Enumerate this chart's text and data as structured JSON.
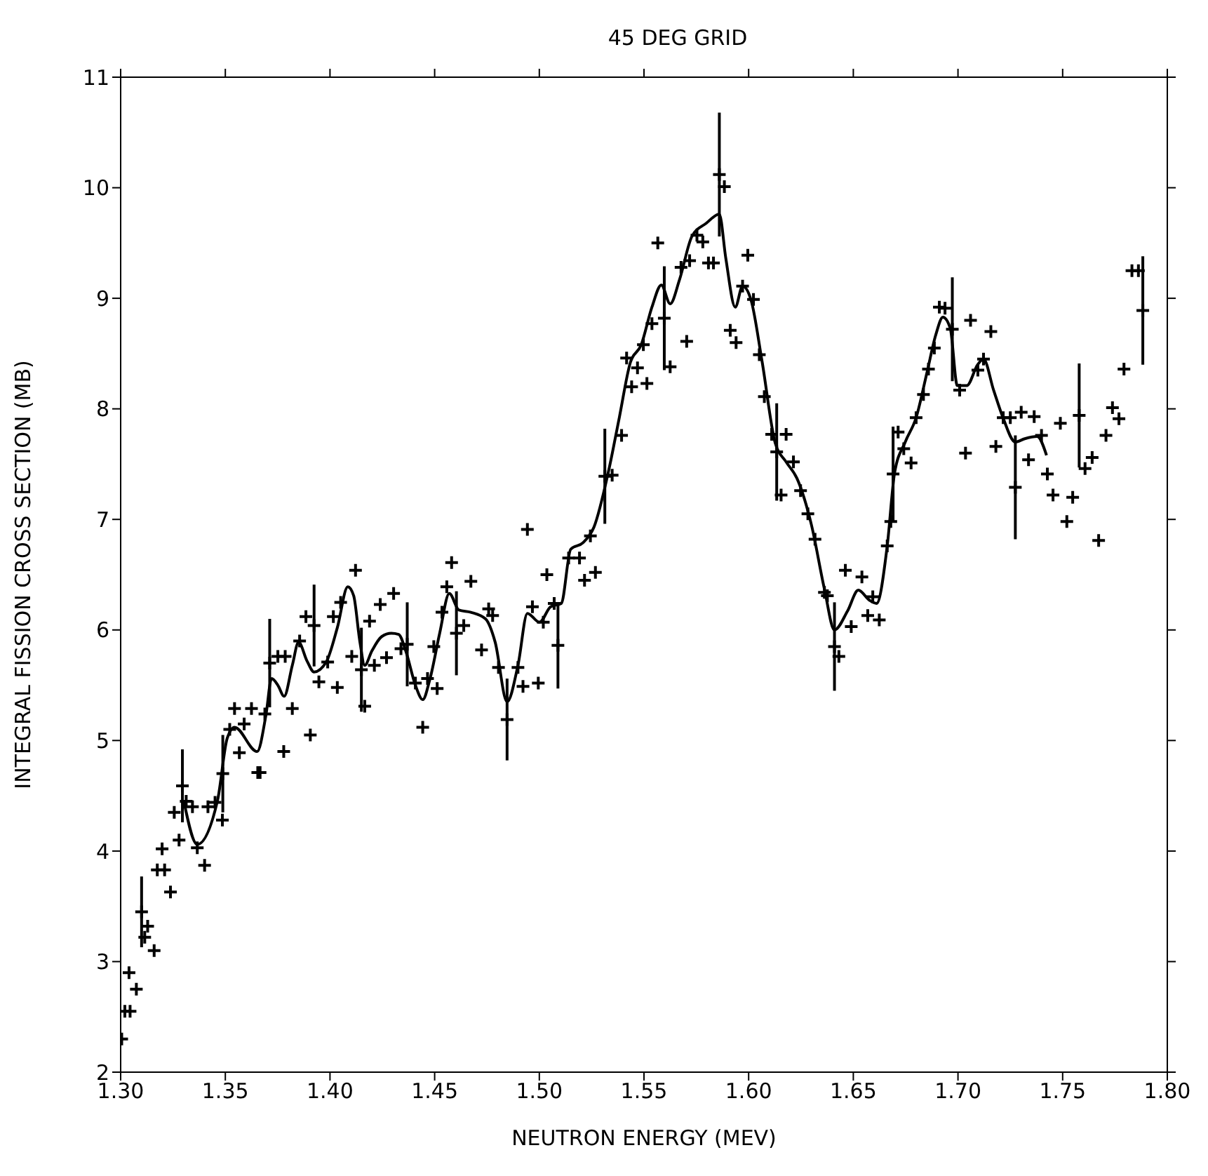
{
  "chart_data": {
    "type": "scatter",
    "title": "45 DEG GRID",
    "xlabel": "NEUTRON ENERGY (MEV)",
    "ylabel": "INTEGRAL FISSION CROSS SECTION (MB)",
    "xlim": [
      1.3,
      1.8
    ],
    "xticks": [
      {
        "value": 1.3,
        "label": "1.30"
      },
      {
        "value": 1.35,
        "label": "1.35"
      },
      {
        "value": 1.4,
        "label": "1.40"
      },
      {
        "value": 1.45,
        "label": "1.45"
      },
      {
        "value": 1.5,
        "label": "1.50"
      },
      {
        "value": 1.55,
        "label": "1.55"
      },
      {
        "value": 1.6,
        "label": "1.60"
      },
      {
        "value": 1.65,
        "label": "1.65"
      },
      {
        "value": 1.7,
        "label": "1.70"
      },
      {
        "value": 1.75,
        "label": "1.75"
      },
      {
        "value": 1.8,
        "label": "1.80"
      }
    ],
    "ylim": [
      2,
      11
    ],
    "yticks": [
      2,
      3,
      4,
      5,
      6,
      7,
      8,
      9,
      10,
      11
    ],
    "grid": false,
    "legend": false,
    "series": [
      {
        "type": "scatter",
        "marker": "cross",
        "color": "#000000",
        "x": [
          1.3005,
          1.302,
          1.304,
          1.3045,
          1.3075,
          1.31,
          1.3115,
          1.3129,
          1.316,
          1.3175,
          1.3198,
          1.321,
          1.3238,
          1.3256,
          1.3279,
          1.3295,
          1.3313,
          1.3343,
          1.3366,
          1.3401,
          1.3417,
          1.3451,
          1.3486,
          1.3488,
          1.3521,
          1.3544,
          1.3567,
          1.359,
          1.3625,
          1.3655,
          1.3666,
          1.3689,
          1.3712,
          1.3751,
          1.3779,
          1.3786,
          1.382,
          1.3855,
          1.3885,
          1.3906,
          1.3924,
          1.3947,
          1.3989,
          1.4016,
          1.4035,
          1.4051,
          1.4104,
          1.4122,
          1.415,
          1.4166,
          1.4189,
          1.4212,
          1.424,
          1.427,
          1.4304,
          1.4339,
          1.4369,
          1.4408,
          1.4443,
          1.4466,
          1.4496,
          1.4512,
          1.4535,
          1.4558,
          1.4581,
          1.4604,
          1.4639,
          1.4673,
          1.4724,
          1.4758,
          1.4777,
          1.4805,
          1.4846,
          1.4898,
          1.4922,
          1.4943,
          1.4967,
          1.4995,
          1.5019,
          1.5036,
          1.5071,
          1.5089,
          1.514,
          1.5192,
          1.5216,
          1.5244,
          1.5268,
          1.5313,
          1.5348,
          1.5393,
          1.5417,
          1.5441,
          1.5469,
          1.5497,
          1.5514,
          1.5538,
          1.5566,
          1.5597,
          1.5625,
          1.5677,
          1.5704,
          1.5718,
          1.5753,
          1.5781,
          1.5808,
          1.5832,
          1.586,
          1.5884,
          1.5912,
          1.594,
          1.5971,
          1.5996,
          1.6023,
          1.6051,
          1.6075,
          1.611,
          1.6134,
          1.6155,
          1.6179,
          1.6214,
          1.6248,
          1.6283,
          1.6317,
          1.6362,
          1.6376,
          1.641,
          1.6431,
          1.6462,
          1.649,
          1.6541,
          1.6569,
          1.6593,
          1.6624,
          1.6662,
          1.6679,
          1.669,
          1.6714,
          1.6741,
          1.6776,
          1.68,
          1.6835,
          1.6859,
          1.6887,
          1.6911,
          1.6938,
          1.6973,
          1.7008,
          1.7036,
          1.706,
          1.7095,
          1.7122,
          1.7157,
          1.7181,
          1.7216,
          1.725,
          1.7274,
          1.7302,
          1.7337,
          1.7364,
          1.7399,
          1.7427,
          1.7454,
          1.7489,
          1.752,
          1.7548,
          1.7579,
          1.7607,
          1.7641,
          1.7672,
          1.7707,
          1.7738,
          1.7769,
          1.7793,
          1.7831,
          1.7862,
          1.7883
        ],
        "values": [
          2.3,
          2.55,
          2.9,
          2.55,
          2.75,
          3.45,
          3.22,
          3.32,
          3.1,
          3.83,
          4.02,
          3.83,
          3.63,
          4.35,
          4.1,
          4.59,
          4.45,
          4.4,
          4.03,
          3.87,
          4.4,
          4.44,
          4.28,
          4.7,
          5.1,
          5.29,
          4.89,
          5.15,
          5.29,
          4.71,
          4.71,
          5.24,
          5.7,
          5.76,
          4.9,
          5.76,
          5.29,
          5.9,
          6.12,
          5.05,
          6.04,
          5.53,
          5.71,
          6.12,
          5.48,
          6.25,
          5.76,
          6.54,
          5.64,
          5.31,
          6.08,
          5.68,
          6.23,
          5.75,
          6.33,
          5.83,
          5.87,
          5.52,
          5.12,
          5.56,
          5.85,
          5.47,
          6.16,
          6.39,
          6.61,
          5.97,
          6.04,
          6.44,
          5.82,
          6.19,
          6.13,
          5.66,
          5.19,
          5.66,
          5.49,
          6.91,
          6.21,
          5.52,
          6.07,
          6.5,
          6.24,
          5.86,
          6.65,
          6.65,
          6.45,
          6.85,
          6.52,
          7.39,
          7.4,
          7.76,
          8.46,
          8.2,
          8.37,
          8.58,
          8.23,
          8.77,
          9.5,
          8.82,
          8.38,
          9.28,
          8.61,
          9.34,
          9.57,
          9.51,
          9.32,
          9.32,
          10.12,
          10.01,
          8.71,
          8.6,
          9.11,
          9.39,
          8.99,
          8.49,
          8.11,
          7.77,
          7.61,
          7.22,
          7.77,
          7.52,
          7.26,
          7.05,
          6.82,
          6.34,
          6.31,
          5.85,
          5.76,
          6.54,
          6.03,
          6.48,
          6.13,
          6.3,
          6.09,
          6.76,
          6.98,
          7.41,
          7.79,
          7.64,
          7.51,
          7.92,
          8.13,
          8.36,
          8.55,
          8.92,
          8.91,
          8.72,
          8.17,
          7.6,
          8.8,
          8.35,
          8.45,
          8.7,
          7.66,
          7.92,
          7.92,
          7.29,
          7.97,
          7.54,
          7.93,
          7.76,
          7.41,
          7.22,
          7.87,
          6.98,
          7.2,
          7.94,
          7.46,
          7.56,
          6.81,
          7.76,
          8.01,
          7.91,
          8.36,
          9.25,
          9.25,
          8.89
        ],
        "errors": [
          null,
          null,
          null,
          null,
          null,
          0.32,
          null,
          null,
          null,
          null,
          null,
          null,
          null,
          null,
          null,
          0.33,
          null,
          null,
          null,
          null,
          null,
          null,
          null,
          0.35,
          null,
          null,
          null,
          null,
          null,
          null,
          null,
          null,
          0.4,
          null,
          null,
          null,
          null,
          null,
          null,
          null,
          0.37,
          null,
          null,
          null,
          null,
          null,
          null,
          null,
          0.38,
          null,
          null,
          null,
          null,
          null,
          null,
          null,
          0.38,
          null,
          null,
          null,
          null,
          null,
          null,
          null,
          null,
          0.38,
          null,
          null,
          null,
          null,
          null,
          null,
          0.37,
          null,
          null,
          null,
          null,
          null,
          null,
          null,
          null,
          0.39,
          null,
          null,
          null,
          null,
          null,
          0.43,
          null,
          null,
          null,
          null,
          null,
          null,
          null,
          null,
          null,
          0.47,
          null,
          null,
          null,
          null,
          null,
          null,
          null,
          null,
          0.56,
          null,
          null,
          null,
          null,
          null,
          null,
          null,
          null,
          null,
          0.44,
          null,
          null,
          null,
          null,
          null,
          null,
          null,
          null,
          0.4,
          null,
          null,
          null,
          null,
          null,
          null,
          null,
          null,
          null,
          0.43,
          null,
          null,
          null,
          null,
          null,
          null,
          null,
          null,
          null,
          0.47,
          null,
          null,
          null,
          null,
          null,
          null,
          null,
          null,
          null,
          0.47,
          null,
          null,
          null,
          null,
          null,
          null,
          null,
          null,
          null,
          0.47,
          null,
          null,
          null,
          null,
          null,
          null,
          null,
          null,
          null,
          0.49
        ]
      },
      {
        "type": "line",
        "marker": "none",
        "line_style": "solid",
        "color": "#000000",
        "x": [
          1.3302,
          1.3366,
          1.3463,
          1.3509,
          1.3544,
          1.3652,
          1.3694,
          1.3721,
          1.3751,
          1.3781,
          1.382,
          1.385,
          1.389,
          1.3924,
          1.3982,
          1.4035,
          1.4085,
          1.4113,
          1.4143,
          1.4166,
          1.42,
          1.4247,
          1.4293,
          1.4328,
          1.4362,
          1.4408,
          1.4443,
          1.4478,
          1.4524,
          1.457,
          1.4616,
          1.4673,
          1.4743,
          1.4789,
          1.4846,
          1.4898,
          1.4943,
          1.5001,
          1.5054,
          1.5105,
          1.515,
          1.5209,
          1.5261,
          1.533,
          1.5382,
          1.5435,
          1.5487,
          1.5538,
          1.5583,
          1.5625,
          1.567,
          1.5729,
          1.5798,
          1.586,
          1.5891,
          1.5936,
          1.5971,
          1.6012,
          1.6064,
          1.6127,
          1.6179,
          1.6231,
          1.63,
          1.6362,
          1.641,
          1.6472,
          1.6524,
          1.6576,
          1.6611,
          1.6662,
          1.6697,
          1.6748,
          1.68,
          1.6852,
          1.6894,
          1.6928,
          1.6963,
          1.6997,
          1.7042,
          1.7094,
          1.7122,
          1.717,
          1.7215,
          1.7274,
          1.7319,
          1.7378,
          1.7423
        ],
        "values": [
          4.45,
          4.06,
          4.46,
          5.02,
          5.12,
          4.9,
          5.23,
          5.56,
          5.5,
          5.4,
          5.68,
          5.89,
          5.72,
          5.62,
          5.71,
          6.02,
          6.39,
          6.31,
          5.89,
          5.68,
          5.81,
          5.94,
          5.97,
          5.96,
          5.81,
          5.5,
          5.37,
          5.56,
          5.97,
          6.33,
          6.18,
          6.16,
          6.1,
          5.89,
          5.35,
          5.68,
          6.15,
          6.07,
          6.21,
          6.24,
          6.73,
          6.79,
          6.93,
          7.43,
          7.92,
          8.42,
          8.58,
          8.92,
          9.12,
          8.95,
          9.17,
          9.56,
          9.68,
          9.76,
          9.36,
          8.92,
          9.11,
          8.98,
          8.43,
          7.69,
          7.52,
          7.37,
          6.95,
          6.37,
          6.0,
          6.17,
          6.36,
          6.27,
          6.24,
          6.76,
          7.42,
          7.7,
          7.92,
          8.33,
          8.67,
          8.83,
          8.73,
          8.21,
          8.21,
          8.4,
          8.45,
          8.17,
          7.92,
          7.7,
          7.73,
          7.75,
          7.58
        ]
      }
    ]
  }
}
